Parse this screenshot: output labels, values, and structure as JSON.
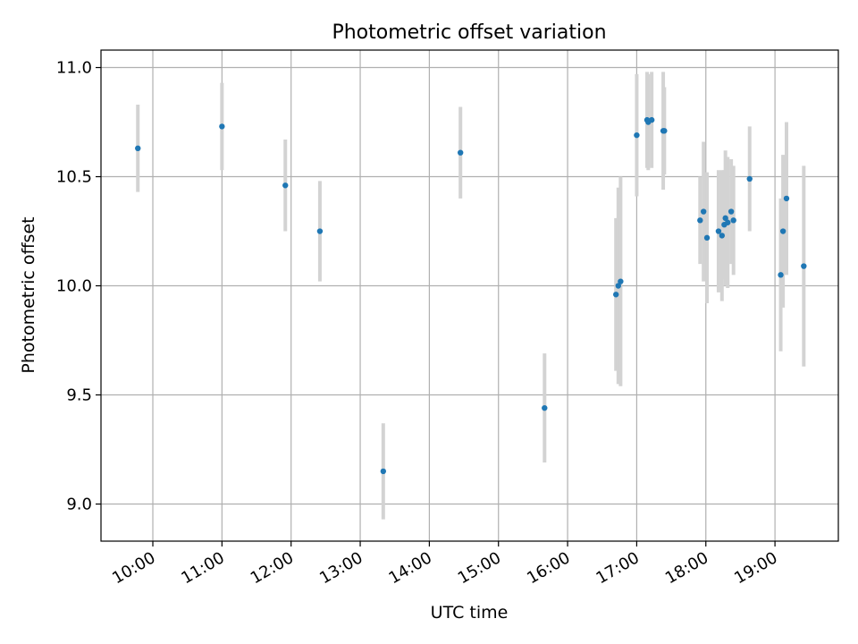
{
  "chart_data": {
    "type": "scatter",
    "title": "Photometric offset variation",
    "xlabel": "UTC time",
    "ylabel": "Photometric offset",
    "x_ticks": [
      "10:00",
      "11:00",
      "12:00",
      "13:00",
      "14:00",
      "15:00",
      "16:00",
      "17:00",
      "18:00",
      "19:00"
    ],
    "y_ticks": [
      "9.0",
      "9.5",
      "10.0",
      "10.5",
      "11.0"
    ],
    "xlim": [
      "09:15",
      "19:55"
    ],
    "ylim": [
      8.83,
      11.08
    ],
    "grid": true,
    "series": [
      {
        "marker_color": "#1f77b4",
        "errorbar_color": "#d3d3d3",
        "points": [
          {
            "x": "09:47",
            "y": 10.63,
            "err": 0.2
          },
          {
            "x": "11:00",
            "y": 10.73,
            "err": 0.2
          },
          {
            "x": "11:55",
            "y": 10.46,
            "err": 0.21
          },
          {
            "x": "12:25",
            "y": 10.25,
            "err": 0.23
          },
          {
            "x": "13:20",
            "y": 9.15,
            "err": 0.22
          },
          {
            "x": "14:27",
            "y": 10.61,
            "err": 0.21
          },
          {
            "x": "15:40",
            "y": 9.44,
            "err": 0.25
          },
          {
            "x": "16:42",
            "y": 9.96,
            "err": 0.35
          },
          {
            "x": "16:44",
            "y": 10.0,
            "err": 0.45
          },
          {
            "x": "16:46",
            "y": 10.02,
            "err": 0.48
          },
          {
            "x": "17:00",
            "y": 10.69,
            "err": 0.28
          },
          {
            "x": "17:09",
            "y": 10.76,
            "err": 0.22
          },
          {
            "x": "17:10",
            "y": 10.75,
            "err": 0.22
          },
          {
            "x": "17:13",
            "y": 10.76,
            "err": 0.22
          },
          {
            "x": "17:23",
            "y": 10.71,
            "err": 0.27
          },
          {
            "x": "17:24",
            "y": 10.71,
            "err": 0.2
          },
          {
            "x": "17:55",
            "y": 10.3,
            "err": 0.2
          },
          {
            "x": "17:58",
            "y": 10.34,
            "err": 0.32
          },
          {
            "x": "18:01",
            "y": 10.22,
            "err": 0.3
          },
          {
            "x": "18:11",
            "y": 10.25,
            "err": 0.28
          },
          {
            "x": "18:14",
            "y": 10.23,
            "err": 0.3
          },
          {
            "x": "18:16",
            "y": 10.28,
            "err": 0.25
          },
          {
            "x": "18:17",
            "y": 10.31,
            "err": 0.31
          },
          {
            "x": "18:19",
            "y": 10.29,
            "err": 0.3
          },
          {
            "x": "18:22",
            "y": 10.34,
            "err": 0.24
          },
          {
            "x": "18:24",
            "y": 10.3,
            "err": 0.25
          },
          {
            "x": "18:38",
            "y": 10.49,
            "err": 0.24
          },
          {
            "x": "19:05",
            "y": 10.05,
            "err": 0.35
          },
          {
            "x": "19:07",
            "y": 10.25,
            "err": 0.35
          },
          {
            "x": "19:10",
            "y": 10.4,
            "err": 0.35
          },
          {
            "x": "19:25",
            "y": 10.09,
            "err": 0.46
          }
        ]
      }
    ]
  }
}
